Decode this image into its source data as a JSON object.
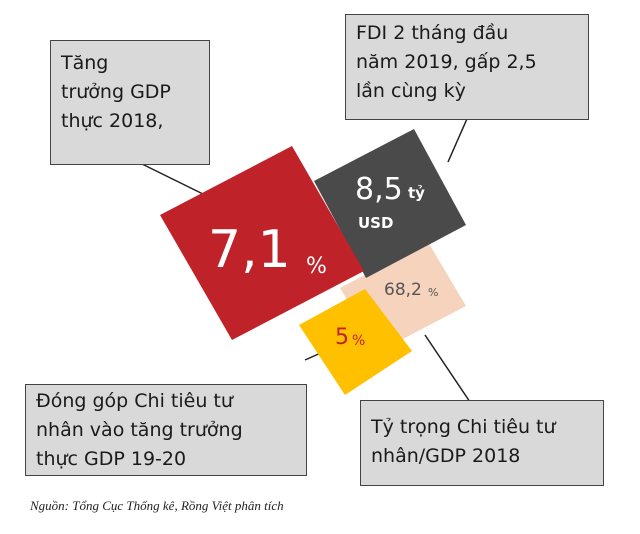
{
  "callouts": [
    {
      "lines": [
        "Tăng",
        "trưởng GDP",
        "thực 2018,"
      ]
    },
    {
      "lines": [
        "FDI 2 tháng đầu",
        "năm 2019, gấp 2,5",
        "lần cùng kỳ"
      ]
    },
    {
      "lines": [
        "Đóng góp Chi tiêu tư",
        "nhân vào tăng trưởng",
        "thực GDP 19-20"
      ]
    },
    {
      "lines": [
        "Tỷ trọng Chi tiêu tư",
        "nhân/GDP 2018"
      ]
    }
  ],
  "tiles": [
    {
      "value": "7,1",
      "unit": "%"
    },
    {
      "value": "8,5",
      "unit": "tỷ",
      "unit2": "USD"
    },
    {
      "value": "68,2",
      "unit": "%"
    },
    {
      "value": "5",
      "unit": "%"
    }
  ],
  "source": "Nguồn: Tổng Cục Thống kê, Rồng Việt phân tích"
}
